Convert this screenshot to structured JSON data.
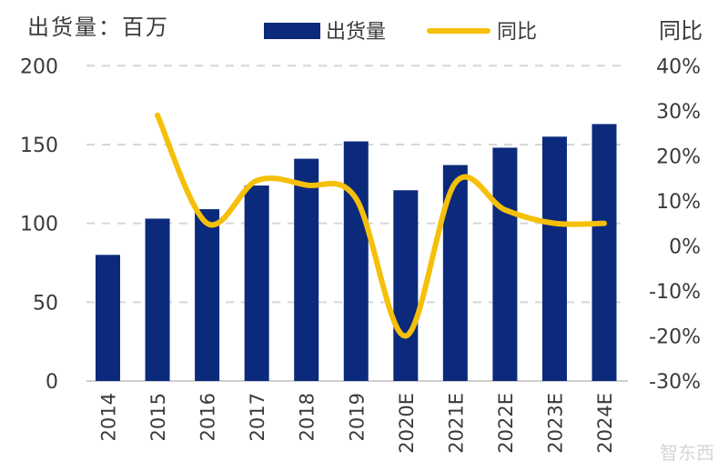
{
  "chart_data": {
    "type": "bar+line",
    "title": "",
    "left_axis_label": "出货量：百万",
    "right_axis_label": "同比",
    "categories": [
      "2014",
      "2015",
      "2016",
      "2017",
      "2018",
      "2019",
      "2020E",
      "2021E",
      "2022E",
      "2023E",
      "2024E"
    ],
    "series": [
      {
        "name": "出货量",
        "type": "bar",
        "axis": "left",
        "color": "#0b2a7c",
        "values": [
          80,
          103,
          109,
          124,
          141,
          152,
          121,
          137,
          148,
          155,
          163
        ]
      },
      {
        "name": "同比",
        "type": "line",
        "axis": "right",
        "color": "#f5bf0a",
        "values": [
          null,
          29,
          5,
          14.5,
          13.5,
          10.5,
          -20,
          14,
          8,
          5,
          5
        ]
      }
    ],
    "left_axis": {
      "ylim": [
        0,
        200
      ],
      "ticks": [
        "0",
        "50",
        "100",
        "150",
        "200"
      ]
    },
    "right_axis": {
      "ylim": [
        -30,
        40
      ],
      "ticks": [
        "-30%",
        "-20%",
        "-10%",
        "0%",
        "10%",
        "20%",
        "30%",
        "40%"
      ]
    },
    "grid": "horizontal dashed",
    "legend": "top-center",
    "watermark": "智东西"
  }
}
